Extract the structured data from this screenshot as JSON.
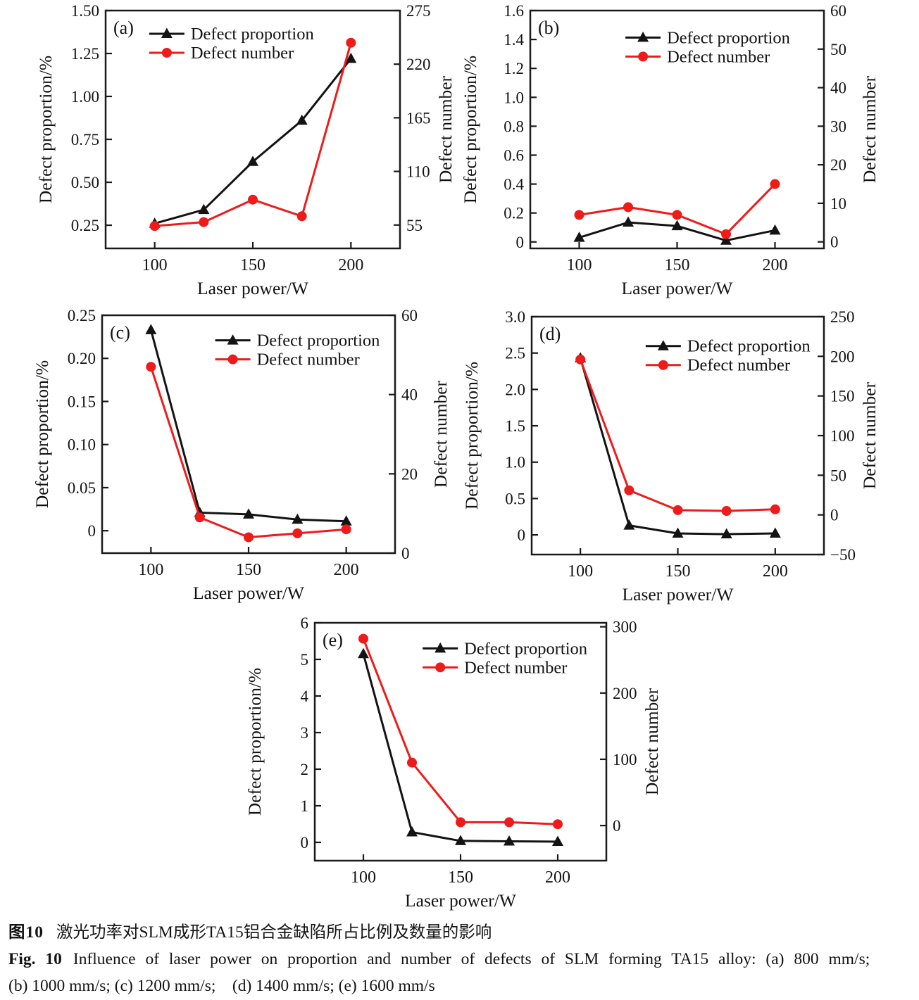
{
  "caption": {
    "zh_label": "图10",
    "zh_text": "激光功率对SLM成形TA15铝合金缺陷所占比例及数量的影响",
    "en_label": "Fig. 10",
    "en_text": "Influence of laser power on proportion and number of defects of SLM forming TA15 alloy: (a) 800 mm/s;",
    "en_text2": "(b) 1000 mm/s; (c) 1200 mm/s;    (d) 1400 mm/s; (e) 1600 mm/s"
  },
  "shared": {
    "xlabel": "Laser power/W",
    "left_axis_label": "Defect proportion/%",
    "right_axis_label": "Defect number",
    "legend_labels": [
      "Defect proportion",
      "Defect number"
    ],
    "colors": {
      "proportion": "#131313",
      "number": "#ee1b1b"
    },
    "x_values": [
      100,
      125,
      150,
      175,
      200
    ],
    "xlim": [
      75,
      225
    ],
    "x_ticks": {
      "values": [
        100,
        150,
        200
      ],
      "labels": [
        "100",
        "150",
        "200"
      ]
    }
  },
  "chart_data": [
    {
      "type": "line",
      "panel": "(a)",
      "left": {
        "lim": [
          0.115,
          1.5
        ],
        "ticks": {
          "values": [
            0.25,
            0.5,
            0.75,
            1.0,
            1.25,
            1.5
          ],
          "labels": [
            "0.25",
            "0.50",
            "0.75",
            "1.00",
            "1.25",
            "1.50"
          ]
        }
      },
      "right": {
        "lim": [
          31,
          275
        ],
        "ticks": {
          "values": [
            55,
            110,
            165,
            220,
            275
          ],
          "labels": [
            "55",
            "110",
            "165",
            "220",
            "275"
          ]
        }
      },
      "series": [
        {
          "name": "Defect proportion",
          "axis": "left",
          "marker": "triangle",
          "color_key": "proportion",
          "values": [
            0.26,
            0.34,
            0.62,
            0.86,
            1.22
          ]
        },
        {
          "name": "Defect number",
          "axis": "right",
          "marker": "circle",
          "color_key": "number",
          "values": [
            54,
            58,
            81,
            64,
            242
          ]
        }
      ]
    },
    {
      "type": "line",
      "panel": "(b)",
      "left": {
        "lim": [
          -0.045,
          1.6
        ],
        "ticks": {
          "values": [
            0,
            0.2,
            0.4,
            0.6,
            0.8,
            1.0,
            1.2,
            1.4,
            1.6
          ],
          "labels": [
            "0",
            "0.2",
            "0.4",
            "0.6",
            "0.8",
            "1.0",
            "1.2",
            "1.4",
            "1.6"
          ]
        }
      },
      "right": {
        "lim": [
          -1.7,
          60
        ],
        "ticks": {
          "values": [
            0,
            10,
            20,
            30,
            40,
            50,
            60
          ],
          "labels": [
            "0",
            "10",
            "20",
            "30",
            "40",
            "50",
            "60"
          ]
        }
      },
      "series": [
        {
          "name": "Defect proportion",
          "axis": "left",
          "marker": "triangle",
          "color_key": "proportion",
          "values": [
            0.03,
            0.135,
            0.11,
            0.01,
            0.08
          ]
        },
        {
          "name": "Defect number",
          "axis": "right",
          "marker": "circle",
          "color_key": "number",
          "values": [
            7,
            9,
            7,
            2,
            15
          ]
        }
      ]
    },
    {
      "type": "line",
      "panel": "(c)",
      "left": {
        "lim": [
          -0.026,
          0.25
        ],
        "ticks": {
          "values": [
            0,
            0.05,
            0.1,
            0.15,
            0.2,
            0.25
          ],
          "labels": [
            "0",
            "0.05",
            "0.10",
            "0.15",
            "0.20",
            "0.25"
          ]
        }
      },
      "right": {
        "lim": [
          0,
          60
        ],
        "ticks": {
          "values": [
            0,
            20,
            40,
            60
          ],
          "labels": [
            "0",
            "20",
            "40",
            "60"
          ]
        }
      },
      "series": [
        {
          "name": "Defect proportion",
          "axis": "left",
          "marker": "triangle",
          "color_key": "proportion",
          "values": [
            0.233,
            0.021,
            0.019,
            0.013,
            0.011
          ]
        },
        {
          "name": "Defect number",
          "axis": "right",
          "marker": "circle",
          "color_key": "number",
          "values": [
            47,
            9,
            4,
            5,
            6
          ]
        }
      ]
    },
    {
      "type": "line",
      "panel": "(d)",
      "left": {
        "lim": [
          -0.27,
          3.0
        ],
        "ticks": {
          "values": [
            0,
            0.5,
            1.0,
            1.5,
            2.0,
            2.5,
            3.0
          ],
          "labels": [
            "0",
            "0.5",
            "1.0",
            "1.5",
            "2.0",
            "2.5",
            "3.0"
          ]
        }
      },
      "right": {
        "lim": [
          -50,
          250
        ],
        "ticks": {
          "values": [
            -50,
            0,
            50,
            100,
            150,
            200,
            250
          ],
          "labels": [
            "−50",
            "0",
            "50",
            "100",
            "150",
            "200",
            "250"
          ]
        }
      },
      "series": [
        {
          "name": "Defect proportion",
          "axis": "left",
          "marker": "triangle",
          "color_key": "proportion",
          "values": [
            2.43,
            0.13,
            0.02,
            0.01,
            0.02
          ]
        },
        {
          "name": "Defect number",
          "axis": "right",
          "marker": "circle",
          "color_key": "number",
          "values": [
            196,
            31,
            6,
            5,
            7
          ]
        }
      ]
    },
    {
      "type": "line",
      "panel": "(e)",
      "left": {
        "lim": [
          -0.5,
          6
        ],
        "ticks": {
          "values": [
            0,
            1,
            2,
            3,
            4,
            5,
            6
          ],
          "labels": [
            "0",
            "1",
            "2",
            "3",
            "4",
            "5",
            "6"
          ]
        }
      },
      "right": {
        "lim": [
          -53,
          306
        ],
        "ticks": {
          "values": [
            0,
            100,
            200,
            300
          ],
          "labels": [
            "0",
            "100",
            "200",
            "300"
          ]
        }
      },
      "series": [
        {
          "name": "Defect proportion",
          "axis": "left",
          "marker": "triangle",
          "color_key": "proportion",
          "values": [
            5.15,
            0.28,
            0.04,
            0.03,
            0.02
          ]
        },
        {
          "name": "Defect number",
          "axis": "right",
          "marker": "circle",
          "color_key": "number",
          "values": [
            282,
            95,
            5,
            5,
            2
          ]
        }
      ]
    }
  ]
}
